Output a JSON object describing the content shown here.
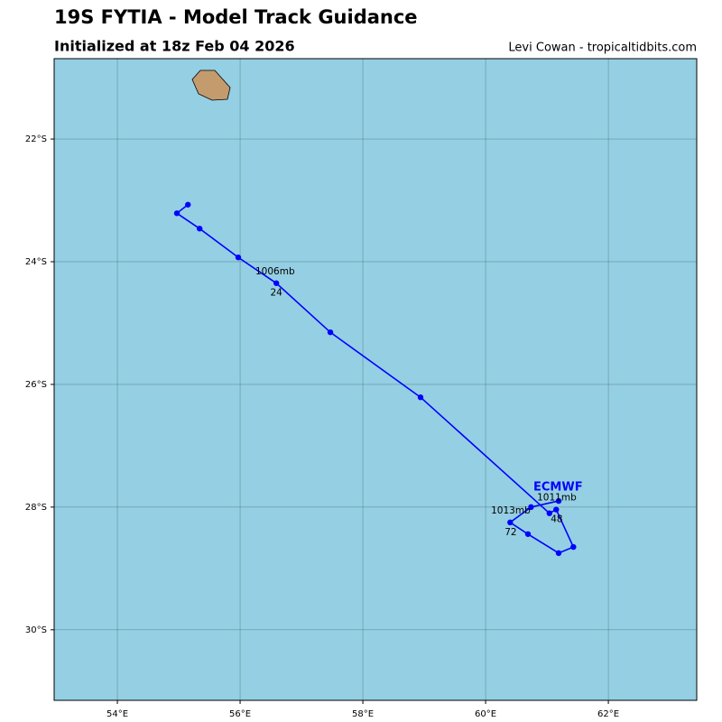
{
  "chart_data": {
    "type": "line",
    "title": "19S FYTIA - Model Track Guidance",
    "subtitle": "Initialized at 18z Feb 04 2026",
    "credit": "Levi Cowan - tropicaltidbits.com",
    "xlim": [
      52.97,
      63.44
    ],
    "ylim": [
      -31.15,
      -20.69
    ],
    "xticks": [
      {
        "value": 54,
        "label": "54°E"
      },
      {
        "value": 56,
        "label": "56°E"
      },
      {
        "value": 58,
        "label": "58°E"
      },
      {
        "value": 60,
        "label": "60°E"
      },
      {
        "value": 62,
        "label": "62°E"
      }
    ],
    "yticks": [
      {
        "value": -22,
        "label": "22°S"
      },
      {
        "value": -24,
        "label": "24°S"
      },
      {
        "value": -26,
        "label": "26°S"
      },
      {
        "value": -28,
        "label": "28°S"
      },
      {
        "value": -30,
        "label": "30°S"
      }
    ],
    "grid": true,
    "series": [
      {
        "name": "ECMWF",
        "color": "#0000ff",
        "x": [
          55.15,
          54.97,
          55.34,
          55.97,
          56.59,
          57.47,
          58.94,
          61.04,
          61.15,
          61.43,
          61.19,
          60.69,
          60.4,
          60.74,
          61.19
        ],
        "values": [
          -23.07,
          -23.21,
          -23.46,
          -23.93,
          -24.35,
          -25.15,
          -26.21,
          -28.1,
          -28.04,
          -28.65,
          -28.75,
          -28.44,
          -28.25,
          -28.0,
          -27.9
        ]
      }
    ],
    "series_label": {
      "text": "ECMWF",
      "x": 61.18,
      "y": -27.68
    },
    "annotations": [
      {
        "text": "1006mb",
        "x": 56.57,
        "y": -24.16
      },
      {
        "text": "24",
        "x": 56.59,
        "y": -24.51
      },
      {
        "text": "1011mb",
        "x": 61.16,
        "y": -27.85
      },
      {
        "text": "48",
        "x": 61.16,
        "y": -28.2
      },
      {
        "text": "1013mb",
        "x": 60.41,
        "y": -28.06
      },
      {
        "text": "72",
        "x": 60.41,
        "y": -28.41
      }
    ]
  }
}
